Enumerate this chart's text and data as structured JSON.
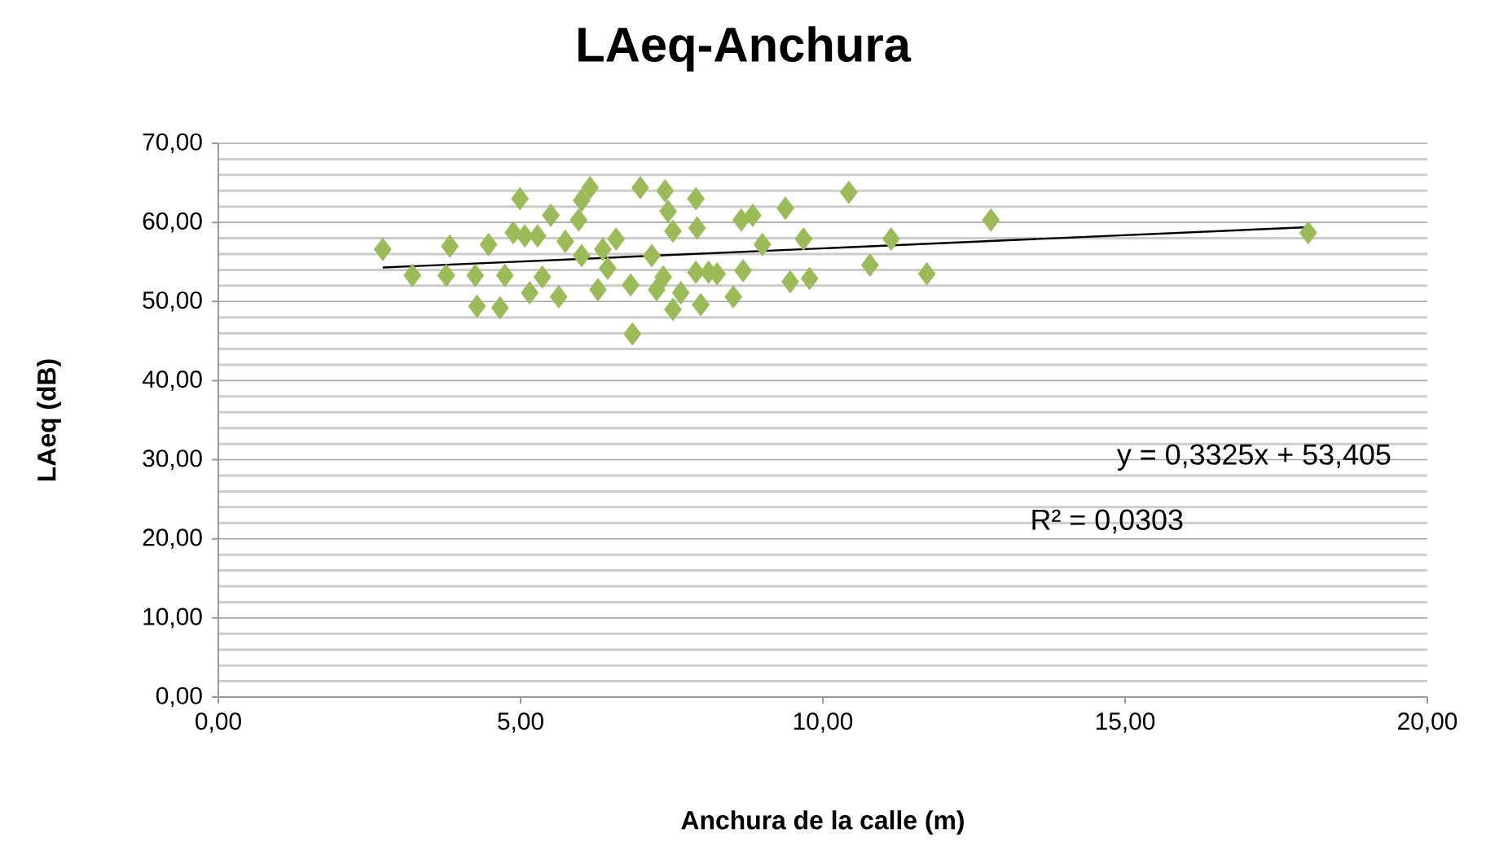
{
  "chart_data": {
    "type": "scatter",
    "title": "LAeq-Anchura",
    "xlabel": "Anchura de la calle (m)",
    "ylabel": "LAeq (dB)",
    "xlim": [
      0,
      20
    ],
    "xticks": [
      {
        "value": 0,
        "label": "0,00"
      },
      {
        "value": 5,
        "label": "5,00"
      },
      {
        "value": 10,
        "label": "10,00"
      },
      {
        "value": 15,
        "label": "15,00"
      },
      {
        "value": 20,
        "label": "20,00"
      }
    ],
    "ylim": [
      0,
      70
    ],
    "yticks": [
      {
        "value": 0,
        "label": "0,00"
      },
      {
        "value": 10,
        "label": "10,00"
      },
      {
        "value": 20,
        "label": "20,00"
      },
      {
        "value": 30,
        "label": "30,00"
      },
      {
        "value": 40,
        "label": "40,00"
      },
      {
        "value": 50,
        "label": "50,00"
      },
      {
        "value": 60,
        "label": "60,00"
      },
      {
        "value": 70,
        "label": "70,00"
      }
    ],
    "grid": "y",
    "marker": "diamond",
    "annotations": [
      "y = 0,3325x + 53,405",
      "R² = 0,0303"
    ],
    "series": [
      {
        "color": "#9bbb59",
        "x": [
          2.72,
          3.21,
          3.83,
          3.77,
          4.28,
          4.47,
          4.25,
          4.66,
          4.74,
          4.99,
          4.88,
          5.07,
          5.15,
          5.5,
          5.28,
          5.36,
          5.63,
          5.74,
          6.01,
          6.15,
          5.96,
          6.01,
          6.36,
          6.58,
          6.44,
          6.28,
          6.85,
          6.82,
          6.98,
          7.39,
          7.17,
          7.25,
          7.52,
          7.52,
          7.44,
          7.9,
          7.92,
          7.98,
          7.9,
          8.11,
          7.36,
          7.65,
          8.25,
          8.52,
          8.68,
          8.65,
          8.84,
          9.0,
          9.38,
          9.68,
          9.46,
          9.78,
          10.43,
          10.78,
          11.13,
          11.72,
          12.78,
          18.03
        ],
        "values": [
          56.6,
          53.3,
          57.0,
          53.3,
          49.4,
          57.2,
          53.3,
          49.2,
          53.3,
          63.0,
          58.7,
          58.3,
          51.1,
          60.9,
          58.3,
          53.1,
          50.6,
          57.6,
          62.8,
          64.4,
          60.3,
          55.8,
          56.6,
          57.9,
          54.2,
          51.5,
          45.9,
          52.1,
          64.4,
          64.0,
          55.8,
          51.5,
          49.0,
          58.9,
          61.4,
          63.0,
          59.3,
          49.6,
          53.7,
          53.7,
          53.1,
          51.1,
          53.5,
          50.6,
          53.9,
          60.3,
          60.9,
          57.2,
          61.8,
          57.9,
          52.5,
          52.9,
          63.8,
          54.6,
          57.9,
          53.5,
          60.3,
          58.7
        ]
      },
      {
        "type": "line",
        "color": "#000000",
        "marker": "none",
        "x": [
          2.72,
          18.03
        ],
        "values": [
          54.3,
          59.4
        ]
      }
    ]
  }
}
